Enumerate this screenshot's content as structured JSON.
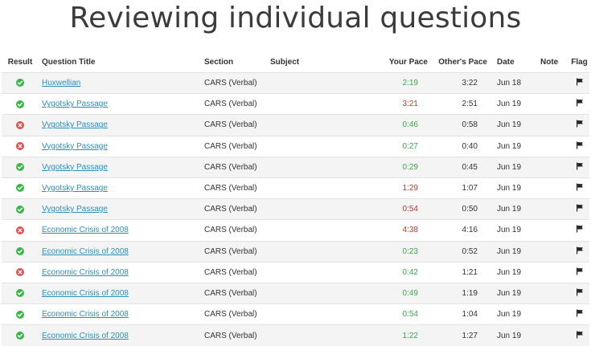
{
  "page_title": "Reviewing individual questions",
  "columns": {
    "result": "Result",
    "title": "Question Title",
    "section": "Section",
    "subject": "Subject",
    "your_pace": "Your Pace",
    "others_pace": "Other's Pace",
    "date": "Date",
    "note": "Note",
    "flag": "Flag"
  },
  "colors": {
    "correct": "#3bb54a",
    "incorrect": "#d9534f",
    "pace_fast": "#3aa84a",
    "pace_slow": "#c0392b",
    "link": "#2a8fbf"
  },
  "rows": [
    {
      "result": "correct",
      "title": "Huxwellian",
      "section": "CARS (Verbal)",
      "subject": "",
      "your_pace": "2:19",
      "pace_status": "fast",
      "others_pace": "3:22",
      "date": "Jun 18",
      "note": "",
      "flag_icon": "flag-icon"
    },
    {
      "result": "correct",
      "title": "Vygotsky Passage",
      "section": "CARS (Verbal)",
      "subject": "",
      "your_pace": "3:21",
      "pace_status": "slow",
      "others_pace": "2:51",
      "date": "Jun 19",
      "note": "",
      "flag_icon": "flag-icon"
    },
    {
      "result": "incorrect",
      "title": "Vygotsky Passage",
      "section": "CARS (Verbal)",
      "subject": "",
      "your_pace": "0:46",
      "pace_status": "fast",
      "others_pace": "0:58",
      "date": "Jun 19",
      "note": "",
      "flag_icon": "flag-icon"
    },
    {
      "result": "incorrect",
      "title": "Vygotsky Passage",
      "section": "CARS (Verbal)",
      "subject": "",
      "your_pace": "0:27",
      "pace_status": "fast",
      "others_pace": "0:40",
      "date": "Jun 19",
      "note": "",
      "flag_icon": "flag-icon"
    },
    {
      "result": "correct",
      "title": "Vygotsky Passage",
      "section": "CARS (Verbal)",
      "subject": "",
      "your_pace": "0:29",
      "pace_status": "fast",
      "others_pace": "0:45",
      "date": "Jun 19",
      "note": "",
      "flag_icon": "flag-icon"
    },
    {
      "result": "correct",
      "title": "Vygotsky Passage",
      "section": "CARS (Verbal)",
      "subject": "",
      "your_pace": "1:29",
      "pace_status": "slow",
      "others_pace": "1:07",
      "date": "Jun 19",
      "note": "",
      "flag_icon": "flag-icon"
    },
    {
      "result": "correct",
      "title": "Vygotsky Passage",
      "section": "CARS (Verbal)",
      "subject": "",
      "your_pace": "0:54",
      "pace_status": "slow",
      "others_pace": "0:50",
      "date": "Jun 19",
      "note": "",
      "flag_icon": "flag-icon"
    },
    {
      "result": "incorrect",
      "title": "Economic Crisis of 2008",
      "section": "CARS (Verbal)",
      "subject": "",
      "your_pace": "4:38",
      "pace_status": "slow",
      "others_pace": "4:16",
      "date": "Jun 19",
      "note": "",
      "flag_icon": "flag-icon"
    },
    {
      "result": "correct",
      "title": "Economic Crisis of 2008",
      "section": "CARS (Verbal)",
      "subject": "",
      "your_pace": "0:23",
      "pace_status": "fast",
      "others_pace": "0:52",
      "date": "Jun 19",
      "note": "",
      "flag_icon": "flag-icon"
    },
    {
      "result": "incorrect",
      "title": "Economic Crisis of 2008",
      "section": "CARS (Verbal)",
      "subject": "",
      "your_pace": "0:42",
      "pace_status": "fast",
      "others_pace": "1:21",
      "date": "Jun 19",
      "note": "",
      "flag_icon": "flag-icon"
    },
    {
      "result": "correct",
      "title": "Economic Crisis of 2008",
      "section": "CARS (Verbal)",
      "subject": "",
      "your_pace": "0:49",
      "pace_status": "fast",
      "others_pace": "1:19",
      "date": "Jun 19",
      "note": "",
      "flag_icon": "flag-icon"
    },
    {
      "result": "correct",
      "title": "Economic Crisis of 2008",
      "section": "CARS (Verbal)",
      "subject": "",
      "your_pace": "0:54",
      "pace_status": "fast",
      "others_pace": "1:04",
      "date": "Jun 19",
      "note": "",
      "flag_icon": "flag-icon"
    },
    {
      "result": "correct",
      "title": "Economic Crisis of 2008",
      "section": "CARS (Verbal)",
      "subject": "",
      "your_pace": "1:22",
      "pace_status": "fast",
      "others_pace": "1:27",
      "date": "Jun 19",
      "note": "",
      "flag_icon": "flag-icon"
    }
  ]
}
